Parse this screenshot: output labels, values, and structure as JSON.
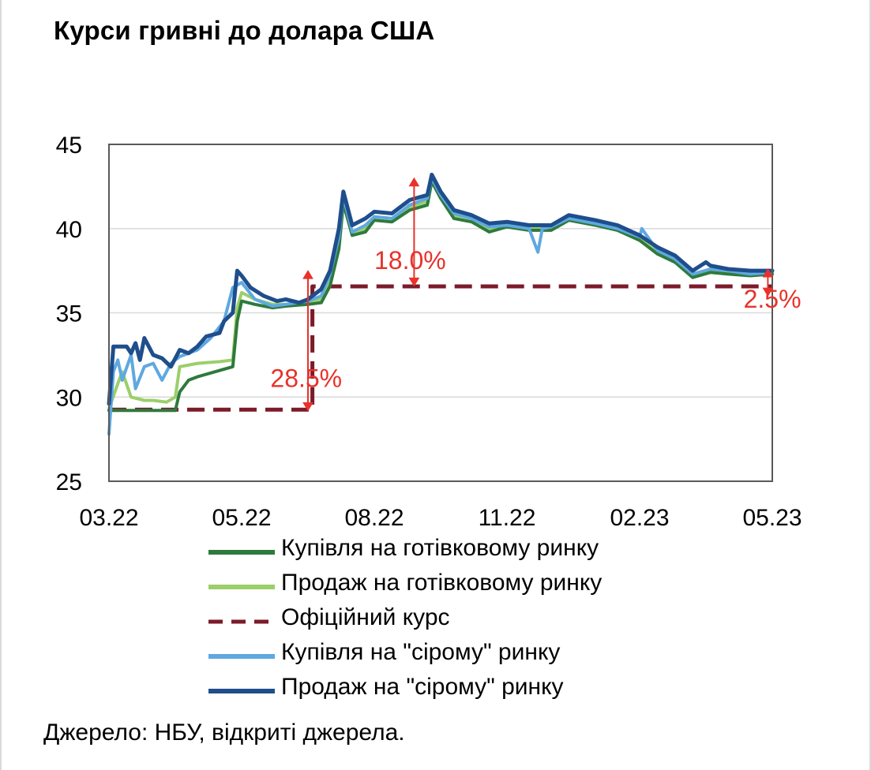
{
  "title": "Курси гривні до долара США",
  "source": "Джерело: НБУ, відкриті джерела.",
  "colors": {
    "cash_buy": "#2e7a3c",
    "cash_sell": "#9bcf6a",
    "official": "#7b1b2a",
    "grey_buy": "#5fa8e0",
    "grey_sell": "#1f4e8c",
    "annotation": "#e8322a",
    "grid": "#d9d9d9"
  },
  "chart_data": {
    "type": "line",
    "title": "Курси гривні до долара США",
    "xlabel": "",
    "ylabel": "",
    "ylim": [
      25,
      45
    ],
    "yticks": [
      25,
      30,
      35,
      40,
      45
    ],
    "xlim": [
      0,
      15
    ],
    "x_tick_labels": [
      "03.22",
      "05.22",
      "08.22",
      "11.22",
      "02.23",
      "05.23"
    ],
    "x_tick_positions": [
      0,
      3,
      6,
      9,
      12,
      15
    ],
    "grid": "horizontal",
    "legend_position": "bottom",
    "series": [
      {
        "name": "Купівля на готівковому ринку",
        "color": "#2e7a3c",
        "style": "solid",
        "points": [
          [
            0.0,
            29.2
          ],
          [
            0.5,
            29.2
          ],
          [
            1.0,
            29.2
          ],
          [
            1.5,
            29.2
          ],
          [
            1.6,
            30.3
          ],
          [
            1.8,
            31.0
          ],
          [
            2.0,
            31.2
          ],
          [
            2.4,
            31.5
          ],
          [
            2.8,
            31.8
          ],
          [
            2.9,
            34.5
          ],
          [
            3.0,
            35.7
          ],
          [
            3.3,
            35.5
          ],
          [
            3.7,
            35.3
          ],
          [
            4.0,
            35.4
          ],
          [
            4.5,
            35.5
          ],
          [
            4.8,
            35.6
          ],
          [
            5.0,
            36.6
          ],
          [
            5.2,
            38.8
          ],
          [
            5.3,
            41.5
          ],
          [
            5.5,
            39.6
          ],
          [
            5.8,
            39.8
          ],
          [
            6.0,
            40.5
          ],
          [
            6.4,
            40.4
          ],
          [
            6.8,
            41.1
          ],
          [
            7.2,
            41.4
          ],
          [
            7.3,
            42.8
          ],
          [
            7.5,
            41.8
          ],
          [
            7.8,
            40.6
          ],
          [
            8.2,
            40.4
          ],
          [
            8.6,
            39.8
          ],
          [
            9.0,
            40.1
          ],
          [
            9.5,
            39.9
          ],
          [
            10.0,
            39.9
          ],
          [
            10.4,
            40.5
          ],
          [
            11.0,
            40.2
          ],
          [
            11.5,
            39.9
          ],
          [
            12.0,
            39.3
          ],
          [
            12.4,
            38.5
          ],
          [
            12.8,
            38.0
          ],
          [
            13.2,
            37.1
          ],
          [
            13.6,
            37.4
          ],
          [
            14.0,
            37.3
          ],
          [
            14.5,
            37.2
          ],
          [
            15.0,
            37.3
          ]
        ]
      },
      {
        "name": "Продаж на готівковому ринку",
        "color": "#9bcf6a",
        "style": "solid",
        "points": [
          [
            0.0,
            29.3
          ],
          [
            0.2,
            30.8
          ],
          [
            0.3,
            31.5
          ],
          [
            0.5,
            30.0
          ],
          [
            0.8,
            29.8
          ],
          [
            1.0,
            29.8
          ],
          [
            1.3,
            29.7
          ],
          [
            1.5,
            30.0
          ],
          [
            1.6,
            31.8
          ],
          [
            2.0,
            32.0
          ],
          [
            2.5,
            32.1
          ],
          [
            2.8,
            32.2
          ],
          [
            2.9,
            35.3
          ],
          [
            3.0,
            36.2
          ],
          [
            3.3,
            35.8
          ],
          [
            3.7,
            35.5
          ],
          [
            4.0,
            35.5
          ],
          [
            4.5,
            35.6
          ],
          [
            4.8,
            35.8
          ],
          [
            5.0,
            36.8
          ],
          [
            5.2,
            39.0
          ],
          [
            5.3,
            41.8
          ],
          [
            5.5,
            39.8
          ],
          [
            5.8,
            40.0
          ],
          [
            6.0,
            40.7
          ],
          [
            6.4,
            40.6
          ],
          [
            6.8,
            41.3
          ],
          [
            7.2,
            41.6
          ],
          [
            7.3,
            43.0
          ],
          [
            7.5,
            42.0
          ],
          [
            7.8,
            40.8
          ],
          [
            8.2,
            40.6
          ],
          [
            8.6,
            40.0
          ],
          [
            9.0,
            40.2
          ],
          [
            9.5,
            40.0
          ],
          [
            10.0,
            40.0
          ],
          [
            10.4,
            40.6
          ],
          [
            11.0,
            40.3
          ],
          [
            11.5,
            40.0
          ],
          [
            12.0,
            39.4
          ],
          [
            12.4,
            38.6
          ],
          [
            12.8,
            38.1
          ],
          [
            13.2,
            37.2
          ],
          [
            13.6,
            37.5
          ],
          [
            14.0,
            37.4
          ],
          [
            14.5,
            37.3
          ],
          [
            15.0,
            37.4
          ]
        ]
      },
      {
        "name": "Офіційний курс",
        "color": "#7b1b2a",
        "style": "dashed",
        "points": [
          [
            0.0,
            29.25
          ],
          [
            4.6,
            29.25
          ],
          [
            4.6,
            36.57
          ],
          [
            15.0,
            36.57
          ]
        ]
      },
      {
        "name": "Купівля на \"сірому\" ринку",
        "color": "#5fa8e0",
        "style": "solid",
        "points": [
          [
            0.0,
            27.8
          ],
          [
            0.1,
            31.5
          ],
          [
            0.2,
            32.2
          ],
          [
            0.3,
            31.0
          ],
          [
            0.5,
            32.5
          ],
          [
            0.6,
            30.5
          ],
          [
            0.8,
            31.8
          ],
          [
            1.0,
            32.0
          ],
          [
            1.2,
            31.0
          ],
          [
            1.4,
            32.0
          ],
          [
            1.6,
            32.4
          ],
          [
            2.0,
            32.8
          ],
          [
            2.3,
            33.5
          ],
          [
            2.6,
            34.5
          ],
          [
            2.8,
            36.5
          ],
          [
            3.0,
            36.8
          ],
          [
            3.3,
            35.8
          ],
          [
            3.7,
            35.4
          ],
          [
            4.0,
            35.5
          ],
          [
            4.5,
            35.7
          ],
          [
            4.8,
            36.0
          ],
          [
            5.0,
            37.3
          ],
          [
            5.2,
            39.5
          ],
          [
            5.3,
            41.9
          ],
          [
            5.5,
            39.8
          ],
          [
            5.8,
            40.2
          ],
          [
            6.0,
            40.7
          ],
          [
            6.4,
            40.6
          ],
          [
            6.8,
            41.4
          ],
          [
            7.2,
            41.8
          ],
          [
            7.3,
            43.0
          ],
          [
            7.5,
            42.0
          ],
          [
            7.8,
            40.9
          ],
          [
            8.2,
            40.6
          ],
          [
            8.6,
            40.1
          ],
          [
            9.0,
            40.2
          ],
          [
            9.5,
            40.0
          ],
          [
            9.7,
            38.6
          ],
          [
            9.8,
            40.0
          ],
          [
            10.0,
            40.1
          ],
          [
            10.4,
            40.6
          ],
          [
            11.0,
            40.3
          ],
          [
            11.5,
            40.0
          ],
          [
            12.0,
            39.5
          ],
          [
            12.05,
            40.0
          ],
          [
            12.4,
            38.7
          ],
          [
            12.8,
            38.2
          ],
          [
            13.2,
            37.3
          ],
          [
            13.6,
            37.6
          ],
          [
            14.0,
            37.5
          ],
          [
            14.5,
            37.3
          ],
          [
            15.0,
            37.4
          ]
        ]
      },
      {
        "name": "Продаж на \"сірому\" ринку",
        "color": "#1f4e8c",
        "style": "solid",
        "points": [
          [
            0.0,
            29.6
          ],
          [
            0.1,
            33.0
          ],
          [
            0.4,
            33.0
          ],
          [
            0.5,
            32.6
          ],
          [
            0.6,
            33.2
          ],
          [
            0.7,
            32.2
          ],
          [
            0.8,
            33.5
          ],
          [
            1.0,
            32.5
          ],
          [
            1.2,
            32.3
          ],
          [
            1.4,
            31.8
          ],
          [
            1.6,
            32.8
          ],
          [
            1.8,
            32.6
          ],
          [
            2.0,
            33.0
          ],
          [
            2.2,
            33.6
          ],
          [
            2.5,
            33.8
          ],
          [
            2.6,
            34.5
          ],
          [
            2.8,
            35.0
          ],
          [
            2.9,
            37.5
          ],
          [
            3.0,
            37.2
          ],
          [
            3.2,
            36.5
          ],
          [
            3.5,
            36.0
          ],
          [
            3.8,
            35.7
          ],
          [
            4.0,
            35.8
          ],
          [
            4.3,
            35.6
          ],
          [
            4.5,
            35.8
          ],
          [
            4.8,
            36.4
          ],
          [
            5.0,
            37.5
          ],
          [
            5.2,
            40.0
          ],
          [
            5.3,
            42.2
          ],
          [
            5.5,
            40.2
          ],
          [
            5.8,
            40.6
          ],
          [
            6.0,
            41.0
          ],
          [
            6.4,
            40.9
          ],
          [
            6.8,
            41.7
          ],
          [
            7.2,
            42.0
          ],
          [
            7.3,
            43.2
          ],
          [
            7.5,
            42.2
          ],
          [
            7.8,
            41.1
          ],
          [
            8.2,
            40.8
          ],
          [
            8.6,
            40.3
          ],
          [
            9.0,
            40.4
          ],
          [
            9.5,
            40.2
          ],
          [
            10.0,
            40.2
          ],
          [
            10.4,
            40.8
          ],
          [
            11.0,
            40.5
          ],
          [
            11.5,
            40.2
          ],
          [
            12.0,
            39.6
          ],
          [
            12.4,
            38.9
          ],
          [
            12.8,
            38.4
          ],
          [
            13.2,
            37.5
          ],
          [
            13.5,
            38.0
          ],
          [
            13.6,
            37.8
          ],
          [
            14.0,
            37.6
          ],
          [
            14.5,
            37.5
          ],
          [
            15.0,
            37.5
          ]
        ]
      }
    ],
    "annotations": [
      {
        "text": "28.5%",
        "x_text": 3.65,
        "y_text": 30.6,
        "arrow_x": 4.5,
        "arrow_from": 29.2,
        "arrow_to": 37.5
      },
      {
        "text": "18.0%",
        "x_text": 6.0,
        "y_text": 37.6,
        "arrow_x": 6.9,
        "arrow_from": 36.6,
        "arrow_to": 43.0
      },
      {
        "text": "2.5%",
        "x_text": 14.35,
        "y_text": 35.3,
        "arrow_x": 14.9,
        "arrow_from": 36.0,
        "arrow_to": 37.6
      }
    ]
  }
}
